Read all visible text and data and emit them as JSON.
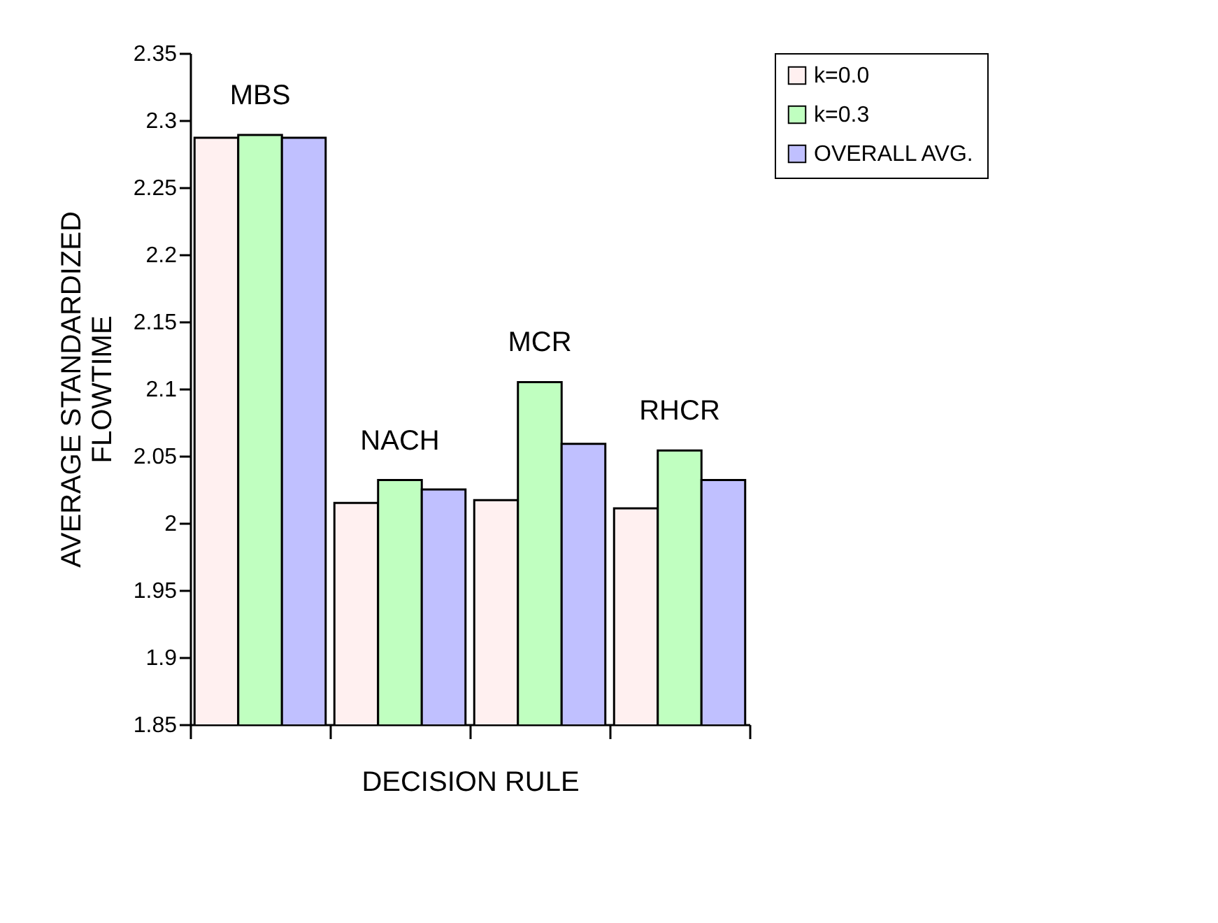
{
  "chart_data": {
    "type": "bar",
    "xlabel": "DECISION RULE",
    "ylabel": "AVERAGE STANDARDIZED\nFLOWTIME",
    "categories": [
      "MBS",
      "NACH",
      "MCR",
      "RHCR"
    ],
    "series": [
      {
        "name": "k=0.0",
        "color": "#fff0f0",
        "values": [
          2.287,
          2.015,
          2.017,
          2.011
        ]
      },
      {
        "name": "k=0.3",
        "color": "#c0ffc0",
        "values": [
          2.289,
          2.032,
          2.105,
          2.054
        ]
      },
      {
        "name": "OVERALL AVG.",
        "color": "#c0c0ff",
        "values": [
          2.287,
          2.025,
          2.059,
          2.032
        ]
      }
    ],
    "ylim": [
      1.85,
      2.35
    ],
    "yticks": [
      1.85,
      1.9,
      1.95,
      2,
      2.05,
      2.1,
      2.15,
      2.2,
      2.25,
      2.3,
      2.35
    ],
    "grid": false,
    "legend": "right"
  }
}
